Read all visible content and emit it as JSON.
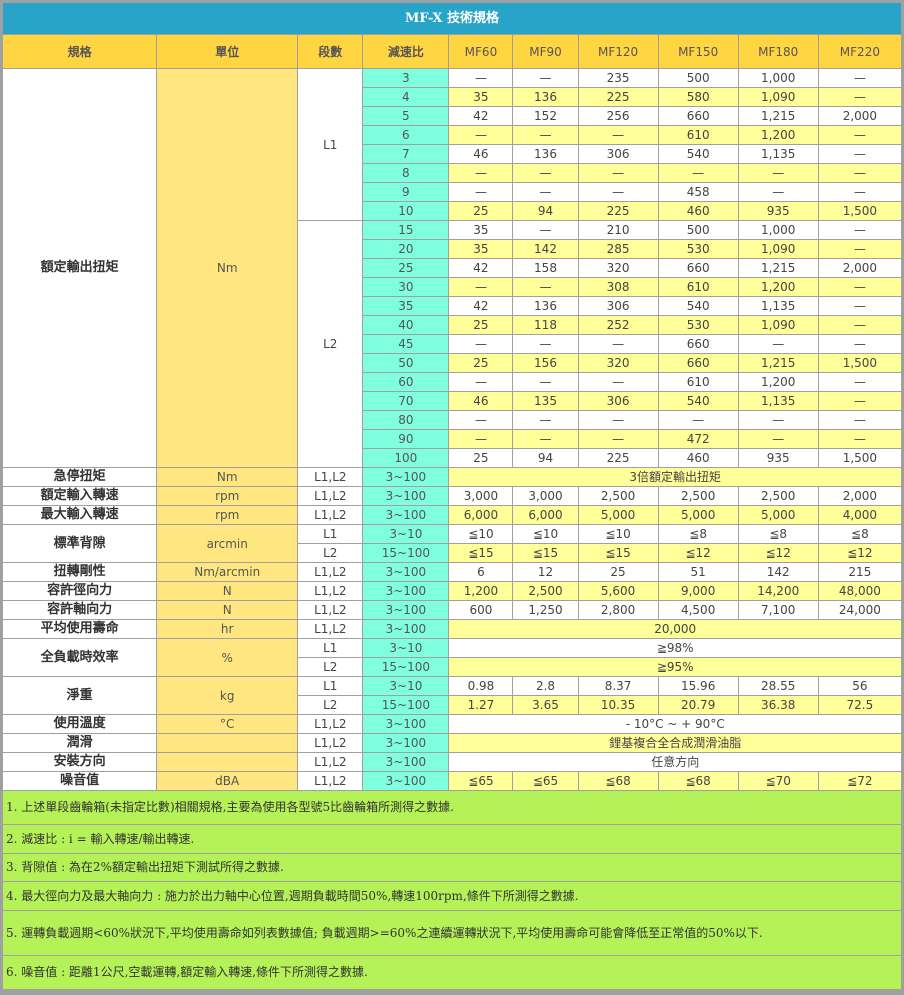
{
  "title": "MF-X 技術規格",
  "headers": [
    "規格",
    "單位",
    "段數",
    "減速比",
    "MF60",
    "MF90",
    "MF120",
    "MF150",
    "MF180",
    "MF220"
  ],
  "colors": {
    "title": "#29a4c9",
    "header": "#ffd642",
    "unit_col": "#ffe680",
    "ratio_col": "#80ffdf",
    "row_alt": "#ffff99",
    "notes": "#b4f257"
  },
  "groups": [
    {
      "spec": "額定輸出扭矩",
      "unit": "Nm",
      "stages": [
        {
          "stage": "L1",
          "rows": [
            {
              "ratio": "3",
              "values": [
                "—",
                "—",
                "235",
                "500",
                "1,000",
                "—"
              ]
            },
            {
              "ratio": "4",
              "values": [
                "35",
                "136",
                "225",
                "580",
                "1,090",
                "—"
              ]
            },
            {
              "ratio": "5",
              "values": [
                "42",
                "152",
                "256",
                "660",
                "1,215",
                "2,000"
              ]
            },
            {
              "ratio": "6",
              "values": [
                "—",
                "—",
                "—",
                "610",
                "1,200",
                "—"
              ]
            },
            {
              "ratio": "7",
              "values": [
                "46",
                "136",
                "306",
                "540",
                "1,135",
                "—"
              ]
            },
            {
              "ratio": "8",
              "values": [
                "—",
                "—",
                "—",
                "—",
                "—",
                "—"
              ]
            },
            {
              "ratio": "9",
              "values": [
                "—",
                "—",
                "—",
                "458",
                "—",
                "—"
              ]
            },
            {
              "ratio": "10",
              "values": [
                "25",
                "94",
                "225",
                "460",
                "935",
                "1,500"
              ]
            }
          ]
        },
        {
          "stage": "L2",
          "rows": [
            {
              "ratio": "15",
              "values": [
                "35",
                "—",
                "210",
                "500",
                "1,000",
                "—"
              ]
            },
            {
              "ratio": "20",
              "values": [
                "35",
                "142",
                "285",
                "530",
                "1,090",
                "—"
              ]
            },
            {
              "ratio": "25",
              "values": [
                "42",
                "158",
                "320",
                "660",
                "1,215",
                "2,000"
              ]
            },
            {
              "ratio": "30",
              "values": [
                "—",
                "—",
                "308",
                "610",
                "1,200",
                "—"
              ]
            },
            {
              "ratio": "35",
              "values": [
                "42",
                "136",
                "306",
                "540",
                "1,135",
                "—"
              ]
            },
            {
              "ratio": "40",
              "values": [
                "25",
                "118",
                "252",
                "530",
                "1,090",
                "—"
              ]
            },
            {
              "ratio": "45",
              "values": [
                "—",
                "—",
                "—",
                "660",
                "—",
                "—"
              ]
            },
            {
              "ratio": "50",
              "values": [
                "25",
                "156",
                "320",
                "660",
                "1,215",
                "1,500"
              ]
            },
            {
              "ratio": "60",
              "values": [
                "—",
                "—",
                "—",
                "610",
                "1,200",
                "—"
              ]
            },
            {
              "ratio": "70",
              "values": [
                "46",
                "135",
                "306",
                "540",
                "1,135",
                "—"
              ]
            },
            {
              "ratio": "80",
              "values": [
                "—",
                "—",
                "—",
                "—",
                "—",
                "—"
              ]
            },
            {
              "ratio": "90",
              "values": [
                "—",
                "—",
                "—",
                "472",
                "—",
                "—"
              ]
            },
            {
              "ratio": "100",
              "values": [
                "25",
                "94",
                "225",
                "460",
                "935",
                "1,500"
              ]
            }
          ]
        }
      ]
    },
    {
      "spec": "急停扭矩",
      "unit": "Nm",
      "stages": [
        {
          "stage": "L1,L2",
          "rows": [
            {
              "ratio": "3~100",
              "values": "3倍額定輸出扭矩"
            }
          ]
        }
      ]
    },
    {
      "spec": "額定輸入轉速",
      "unit": "rpm",
      "stages": [
        {
          "stage": "L1,L2",
          "rows": [
            {
              "ratio": "3~100",
              "values": [
                "3,000",
                "3,000",
                "2,500",
                "2,500",
                "2,500",
                "2,000"
              ]
            }
          ]
        }
      ]
    },
    {
      "spec": "最大輸入轉速",
      "unit": "rpm",
      "stages": [
        {
          "stage": "L1,L2",
          "rows": [
            {
              "ratio": "3~100",
              "values": [
                "6,000",
                "6,000",
                "5,000",
                "5,000",
                "5,000",
                "4,000"
              ]
            }
          ]
        }
      ]
    },
    {
      "spec": "標準背隙",
      "unit": "arcmin",
      "stages": [
        {
          "stage": "L1",
          "rows": [
            {
              "ratio": "3~10",
              "values": [
                "≦10",
                "≦10",
                "≦10",
                "≦8",
                "≦8",
                "≦8"
              ]
            }
          ]
        },
        {
          "stage": "L2",
          "rows": [
            {
              "ratio": "15~100",
              "values": [
                "≦15",
                "≦15",
                "≦15",
                "≦12",
                "≦12",
                "≦12"
              ]
            }
          ]
        }
      ]
    },
    {
      "spec": "扭轉剛性",
      "unit": "Nm/arcmin",
      "stages": [
        {
          "stage": "L1,L2",
          "rows": [
            {
              "ratio": "3~100",
              "values": [
                "6",
                "12",
                "25",
                "51",
                "142",
                "215"
              ]
            }
          ]
        }
      ]
    },
    {
      "spec": "容許徑向力",
      "unit": "N",
      "stages": [
        {
          "stage": "L1,L2",
          "rows": [
            {
              "ratio": "3~100",
              "values": [
                "1,200",
                "2,500",
                "5,600",
                "9,000",
                "14,200",
                "48,000"
              ]
            }
          ]
        }
      ]
    },
    {
      "spec": "容許軸向力",
      "unit": "N",
      "stages": [
        {
          "stage": "L1,L2",
          "rows": [
            {
              "ratio": "3~100",
              "values": [
                "600",
                "1,250",
                "2,800",
                "4,500",
                "7,100",
                "24,000"
              ]
            }
          ]
        }
      ]
    },
    {
      "spec": "平均使用壽命",
      "unit": "hr",
      "stages": [
        {
          "stage": "L1,L2",
          "rows": [
            {
              "ratio": "3~100",
              "values": "20,000"
            }
          ]
        }
      ]
    },
    {
      "spec": "全負載時效率",
      "unit": "%",
      "stages": [
        {
          "stage": "L1",
          "rows": [
            {
              "ratio": "3~10",
              "values": "≧98%"
            }
          ]
        },
        {
          "stage": "L2",
          "rows": [
            {
              "ratio": "15~100",
              "values": "≧95%"
            }
          ]
        }
      ]
    },
    {
      "spec": "淨重",
      "unit": "kg",
      "stages": [
        {
          "stage": "L1",
          "rows": [
            {
              "ratio": "3~10",
              "values": [
                "0.98",
                "2.8",
                "8.37",
                "15.96",
                "28.55",
                "56"
              ]
            }
          ]
        },
        {
          "stage": "L2",
          "rows": [
            {
              "ratio": "15~100",
              "values": [
                "1.27",
                "3.65",
                "10.35",
                "20.79",
                "36.38",
                "72.5"
              ]
            }
          ]
        }
      ]
    },
    {
      "spec": "使用溫度",
      "unit": "°C",
      "stages": [
        {
          "stage": "L1,L2",
          "rows": [
            {
              "ratio": "3~100",
              "values": "- 10°C ~ + 90°C"
            }
          ]
        }
      ]
    },
    {
      "spec": "潤滑",
      "unit": "",
      "stages": [
        {
          "stage": "L1,L2",
          "rows": [
            {
              "ratio": "3~100",
              "values": "鋰基複合全合成潤滑油脂"
            }
          ]
        }
      ]
    },
    {
      "spec": "安裝方向",
      "unit": "",
      "stages": [
        {
          "stage": "L1,L2",
          "rows": [
            {
              "ratio": "3~100",
              "values": "任意方向"
            }
          ]
        }
      ]
    },
    {
      "spec": "噪音值",
      "unit": "dBA",
      "stages": [
        {
          "stage": "L1,L2",
          "rows": [
            {
              "ratio": "3~100",
              "values": [
                "≦65",
                "≦65",
                "≦68",
                "≦68",
                "≦70",
                "≦72"
              ]
            }
          ]
        }
      ]
    }
  ],
  "notes": [
    "1. 上述單段齒輪箱(未指定比數)相關規格,主要為使用各型號5比齒輪箱所測得之數據.",
    "2. 減速比 : i = 輸入轉速/輸出轉速.",
    "3. 背隙值 : 為在2%額定輸出扭矩下測試所得之數據.",
    "4. 最大徑向力及最大軸向力 : 施力於出力軸中心位置,週期負載時間50%,轉速100rpm,條件下所測得之數據.",
    "5. 運轉負載週期<60%狀況下,平均使用壽命如列表數據值; 負載週期>=60%之連續運轉狀況下,平均使用壽命可能會降低至正常值的50%以下.",
    "6. 噪音值 : 距離1公尺,空載運轉,額定輸入轉速,條件下所測得之數據."
  ]
}
